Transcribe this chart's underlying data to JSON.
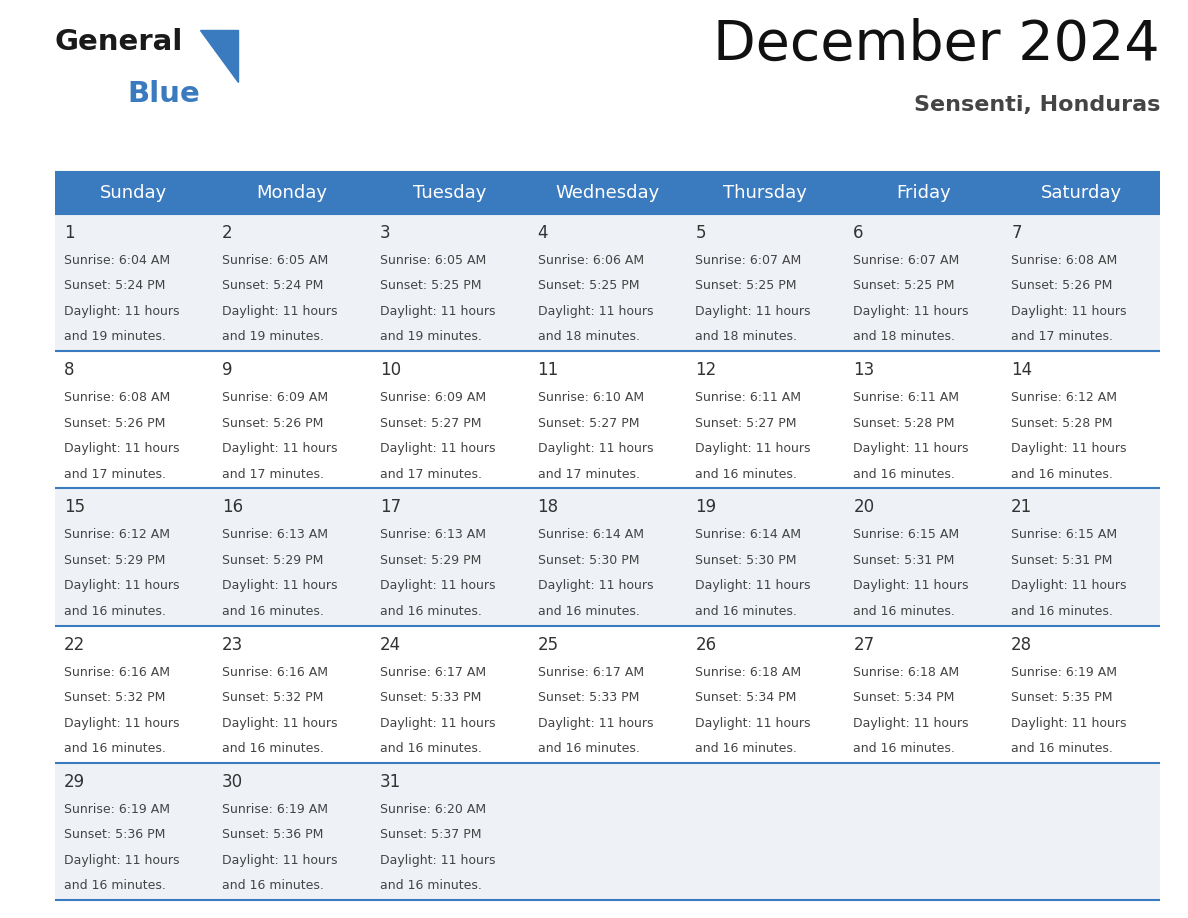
{
  "title": "December 2024",
  "subtitle": "Sensenti, Honduras",
  "header_color": "#3a7abf",
  "header_text_color": "#ffffff",
  "day_names": [
    "Sunday",
    "Monday",
    "Tuesday",
    "Wednesday",
    "Thursday",
    "Friday",
    "Saturday"
  ],
  "weeks": [
    [
      {
        "day": 1,
        "sunrise": "6:04 AM",
        "sunset": "5:24 PM",
        "daylight_hours": 11,
        "daylight_minutes": 19
      },
      {
        "day": 2,
        "sunrise": "6:05 AM",
        "sunset": "5:24 PM",
        "daylight_hours": 11,
        "daylight_minutes": 19
      },
      {
        "day": 3,
        "sunrise": "6:05 AM",
        "sunset": "5:25 PM",
        "daylight_hours": 11,
        "daylight_minutes": 19
      },
      {
        "day": 4,
        "sunrise": "6:06 AM",
        "sunset": "5:25 PM",
        "daylight_hours": 11,
        "daylight_minutes": 18
      },
      {
        "day": 5,
        "sunrise": "6:07 AM",
        "sunset": "5:25 PM",
        "daylight_hours": 11,
        "daylight_minutes": 18
      },
      {
        "day": 6,
        "sunrise": "6:07 AM",
        "sunset": "5:25 PM",
        "daylight_hours": 11,
        "daylight_minutes": 18
      },
      {
        "day": 7,
        "sunrise": "6:08 AM",
        "sunset": "5:26 PM",
        "daylight_hours": 11,
        "daylight_minutes": 17
      }
    ],
    [
      {
        "day": 8,
        "sunrise": "6:08 AM",
        "sunset": "5:26 PM",
        "daylight_hours": 11,
        "daylight_minutes": 17
      },
      {
        "day": 9,
        "sunrise": "6:09 AM",
        "sunset": "5:26 PM",
        "daylight_hours": 11,
        "daylight_minutes": 17
      },
      {
        "day": 10,
        "sunrise": "6:09 AM",
        "sunset": "5:27 PM",
        "daylight_hours": 11,
        "daylight_minutes": 17
      },
      {
        "day": 11,
        "sunrise": "6:10 AM",
        "sunset": "5:27 PM",
        "daylight_hours": 11,
        "daylight_minutes": 17
      },
      {
        "day": 12,
        "sunrise": "6:11 AM",
        "sunset": "5:27 PM",
        "daylight_hours": 11,
        "daylight_minutes": 16
      },
      {
        "day": 13,
        "sunrise": "6:11 AM",
        "sunset": "5:28 PM",
        "daylight_hours": 11,
        "daylight_minutes": 16
      },
      {
        "day": 14,
        "sunrise": "6:12 AM",
        "sunset": "5:28 PM",
        "daylight_hours": 11,
        "daylight_minutes": 16
      }
    ],
    [
      {
        "day": 15,
        "sunrise": "6:12 AM",
        "sunset": "5:29 PM",
        "daylight_hours": 11,
        "daylight_minutes": 16
      },
      {
        "day": 16,
        "sunrise": "6:13 AM",
        "sunset": "5:29 PM",
        "daylight_hours": 11,
        "daylight_minutes": 16
      },
      {
        "day": 17,
        "sunrise": "6:13 AM",
        "sunset": "5:29 PM",
        "daylight_hours": 11,
        "daylight_minutes": 16
      },
      {
        "day": 18,
        "sunrise": "6:14 AM",
        "sunset": "5:30 PM",
        "daylight_hours": 11,
        "daylight_minutes": 16
      },
      {
        "day": 19,
        "sunrise": "6:14 AM",
        "sunset": "5:30 PM",
        "daylight_hours": 11,
        "daylight_minutes": 16
      },
      {
        "day": 20,
        "sunrise": "6:15 AM",
        "sunset": "5:31 PM",
        "daylight_hours": 11,
        "daylight_minutes": 16
      },
      {
        "day": 21,
        "sunrise": "6:15 AM",
        "sunset": "5:31 PM",
        "daylight_hours": 11,
        "daylight_minutes": 16
      }
    ],
    [
      {
        "day": 22,
        "sunrise": "6:16 AM",
        "sunset": "5:32 PM",
        "daylight_hours": 11,
        "daylight_minutes": 16
      },
      {
        "day": 23,
        "sunrise": "6:16 AM",
        "sunset": "5:32 PM",
        "daylight_hours": 11,
        "daylight_minutes": 16
      },
      {
        "day": 24,
        "sunrise": "6:17 AM",
        "sunset": "5:33 PM",
        "daylight_hours": 11,
        "daylight_minutes": 16
      },
      {
        "day": 25,
        "sunrise": "6:17 AM",
        "sunset": "5:33 PM",
        "daylight_hours": 11,
        "daylight_minutes": 16
      },
      {
        "day": 26,
        "sunrise": "6:18 AM",
        "sunset": "5:34 PM",
        "daylight_hours": 11,
        "daylight_minutes": 16
      },
      {
        "day": 27,
        "sunrise": "6:18 AM",
        "sunset": "5:34 PM",
        "daylight_hours": 11,
        "daylight_minutes": 16
      },
      {
        "day": 28,
        "sunrise": "6:19 AM",
        "sunset": "5:35 PM",
        "daylight_hours": 11,
        "daylight_minutes": 16
      }
    ],
    [
      {
        "day": 29,
        "sunrise": "6:19 AM",
        "sunset": "5:36 PM",
        "daylight_hours": 11,
        "daylight_minutes": 16
      },
      {
        "day": 30,
        "sunrise": "6:19 AM",
        "sunset": "5:36 PM",
        "daylight_hours": 11,
        "daylight_minutes": 16
      },
      {
        "day": 31,
        "sunrise": "6:20 AM",
        "sunset": "5:37 PM",
        "daylight_hours": 11,
        "daylight_minutes": 16
      },
      null,
      null,
      null,
      null
    ]
  ],
  "bg_color": "#ffffff",
  "line_color": "#3a7abf",
  "text_color": "#444444",
  "number_color": "#333333",
  "row_bg_even": "#eef2f7",
  "row_bg_odd": "#ffffff",
  "logo_black": "#1a1a1a",
  "logo_blue": "#3a7abf",
  "title_color": "#111111",
  "subtitle_color": "#444444",
  "header_fontsize": 13,
  "day_number_fontsize": 12,
  "cell_text_fontsize": 9,
  "title_fontsize": 40,
  "subtitle_fontsize": 16
}
